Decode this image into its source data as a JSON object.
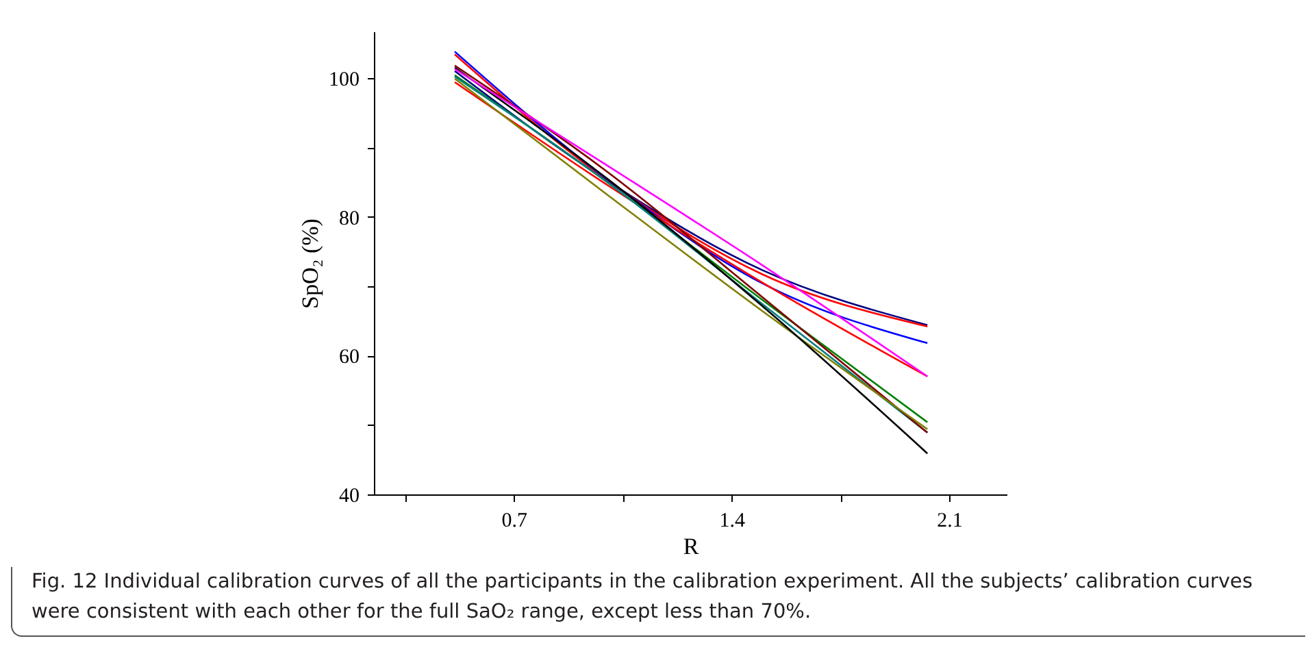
{
  "chart_data": {
    "type": "line",
    "xlabel": "R",
    "ylabel": "SpO₂ (%)",
    "x": [
      0.51,
      1.0,
      1.5,
      2.03
    ],
    "series": [
      {
        "color": "#000080",
        "values": [
          101.0,
          85.2,
          72.3,
          64.4
        ]
      },
      {
        "color": "#ff0000",
        "values": [
          103.4,
          85.3,
          71.7,
          64.2
        ]
      },
      {
        "color": "#0000ff",
        "values": [
          103.8,
          85.4,
          70.4,
          61.8
        ]
      },
      {
        "color": "#ff0000",
        "values": [
          99.4,
          84.6,
          70.5,
          57.0
        ]
      },
      {
        "color": "#008000",
        "values": [
          100.4,
          85.0,
          68.0,
          50.4
        ]
      },
      {
        "color": "#008080",
        "values": [
          100.2,
          85.0,
          67.4,
          48.9
        ]
      },
      {
        "color": "#800000",
        "values": [
          101.8,
          86.5,
          68.4,
          48.9
        ]
      },
      {
        "color": "#808000",
        "values": [
          99.9,
          83.2,
          66.4,
          49.4
        ]
      },
      {
        "color": "#000000",
        "values": [
          101.5,
          85.5,
          67.1,
          45.9
        ]
      },
      {
        "color": "#ff00ff",
        "values": [
          101.3,
          87.4,
          73.0,
          57.0
        ]
      }
    ],
    "xlim": [
      0.25,
      2.285
    ],
    "ylim": [
      40,
      106.7
    ],
    "xticks": [
      {
        "value": 0.35,
        "label": null
      },
      0.7,
      {
        "value": 1.05,
        "label": null
      },
      1.4,
      {
        "value": 1.75,
        "label": null
      },
      2.1
    ],
    "yticks": [
      40,
      {
        "value": 50,
        "label": null
      },
      60,
      {
        "value": 70,
        "label": null
      },
      80,
      {
        "value": 90,
        "label": null
      },
      100
    ],
    "annotations": [
      "Fig. 12  Individual calibration curves of all the participants in the calibration experiment. All the subjects’ calibration curves were consistent with each other for the full SaO₂ range, except less than 70%."
    ]
  }
}
